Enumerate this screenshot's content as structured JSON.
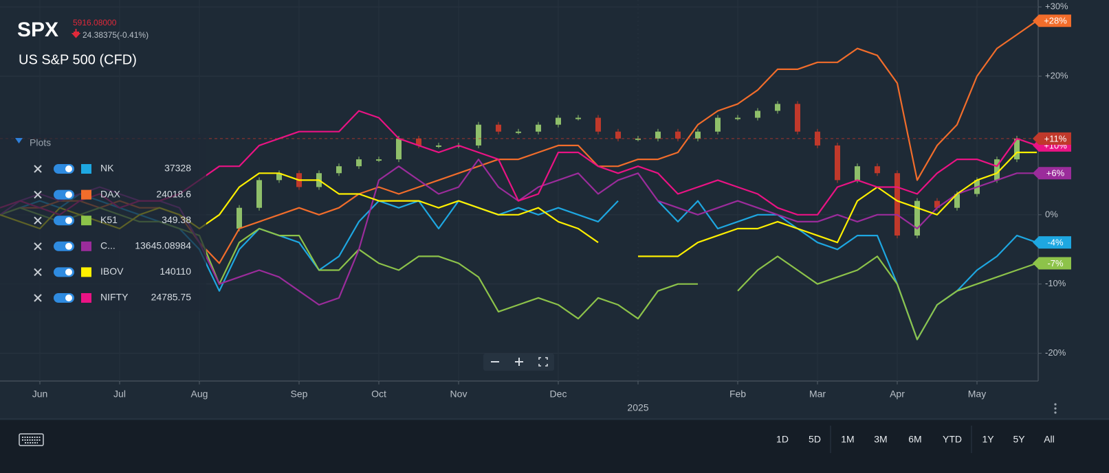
{
  "header": {
    "symbol": "SPX",
    "price": "5916.08000",
    "change": "24.38375(-0.41%)",
    "name": "US S&P 500 (CFD)"
  },
  "legend": {
    "title": "Plots"
  },
  "toolbar": [
    "1D",
    "5D",
    "1M",
    "3M",
    "6M",
    "YTD",
    "1Y",
    "5Y",
    "All"
  ],
  "chart_data": {
    "type": "line",
    "categories": [
      null,
      null,
      "Jun",
      null,
      null,
      null,
      "Jul",
      null,
      null,
      null,
      "Aug",
      null,
      null,
      null,
      null,
      "Sep",
      null,
      null,
      null,
      "Oct",
      null,
      null,
      null,
      "Nov",
      null,
      null,
      null,
      null,
      "Dec",
      null,
      null,
      null,
      "2025",
      null,
      null,
      null,
      null,
      "Feb",
      null,
      null,
      null,
      "Mar",
      null,
      null,
      null,
      "Apr",
      null,
      null,
      null,
      "May",
      null,
      null,
      null
    ],
    "ylim": [
      -24,
      31
    ],
    "yticks": [
      {
        "value": 30,
        "label": "+30%"
      },
      {
        "value": 20,
        "label": "+20%"
      },
      {
        "value": 0,
        "label": "0%"
      },
      {
        "value": -10,
        "label": "-10%"
      },
      {
        "value": -20,
        "label": "-20%"
      }
    ],
    "grid": true,
    "candles": {
      "up_color": "#8fbf6a",
      "down_color": "#c0392b",
      "end_label": "+11%",
      "values": [
        null,
        null,
        null,
        null,
        null,
        null,
        null,
        null,
        null,
        null,
        null,
        -2,
        1,
        5,
        6,
        4,
        6,
        7,
        8,
        8,
        11,
        10,
        10,
        10,
        13,
        12,
        12,
        13,
        14,
        14,
        12,
        11,
        11,
        12,
        11,
        12,
        14,
        14,
        15,
        16,
        12,
        10,
        5,
        7,
        6,
        -3,
        2,
        1,
        3,
        5,
        8,
        11,
        11
      ]
    },
    "series": [
      {
        "name": "NK",
        "legend_value": "37328",
        "color": "#1ea7e1",
        "end_label": "-4%",
        "values": [
          0,
          1,
          2,
          1,
          3,
          2,
          1,
          0,
          -1,
          -2,
          -5,
          -11,
          -5,
          -2,
          -3,
          -4,
          -8,
          -6,
          -1,
          2,
          1,
          2,
          -2,
          2,
          1,
          0,
          1,
          0,
          1,
          0,
          -1,
          2,
          null,
          2,
          -1,
          2,
          -2,
          -1,
          0,
          0,
          -2,
          -4,
          -5,
          -3,
          -3,
          -10,
          -18,
          -13,
          -11,
          -8,
          -6,
          -3,
          -4
        ]
      },
      {
        "name": "DAX",
        "legend_value": "24018.6",
        "color": "#f26d2b",
        "end_label": "+28%",
        "values": [
          0,
          1,
          1,
          2,
          2,
          1,
          2,
          1,
          1,
          0,
          -4,
          -7,
          -2,
          -1,
          0,
          1,
          0,
          1,
          3,
          4,
          3,
          4,
          5,
          6,
          7,
          8,
          8,
          9,
          10,
          10,
          7,
          7,
          8,
          8,
          9,
          13,
          15,
          16,
          18,
          21,
          21,
          22,
          22,
          24,
          23,
          19,
          5,
          10,
          13,
          20,
          24,
          26,
          28
        ]
      },
      {
        "name": "K51",
        "legend_value": "349.38",
        "color": "#8dc34a",
        "end_label": "-7%",
        "values": [
          0,
          1,
          0,
          -1,
          0,
          1,
          0,
          -1,
          -1,
          -2,
          -3,
          -10,
          -4,
          -2,
          -3,
          -3,
          -8,
          -8,
          -5,
          -7,
          -8,
          -6,
          -6,
          -7,
          -9,
          -14,
          -13,
          -12,
          -13,
          -15,
          -12,
          -13,
          -15,
          -11,
          -10,
          -10,
          null,
          -11,
          -8,
          -6,
          -8,
          -10,
          -9,
          -8,
          -6,
          -10,
          -18,
          -13,
          -11,
          -10,
          -9,
          -8,
          -7
        ]
      },
      {
        "name": "C...",
        "legend_value": "13645.08984",
        "color": "#9b2c9b",
        "end_label": "+6%",
        "values": [
          0,
          2,
          3,
          2,
          3,
          4,
          3,
          2,
          2,
          1,
          -4,
          -10,
          -9,
          -8,
          -9,
          -11,
          -13,
          -12,
          -5,
          5,
          7,
          5,
          3,
          4,
          8,
          4,
          2,
          4,
          5,
          6,
          3,
          5,
          6,
          2,
          1,
          0,
          1,
          2,
          1,
          0,
          -1,
          -1,
          0,
          -1,
          0,
          0,
          -2,
          1,
          3,
          4,
          5,
          6,
          6
        ]
      },
      {
        "name": "IBOV",
        "legend_value": "140110",
        "color": "#fff000",
        "values": [
          0,
          -1,
          -2,
          1,
          0,
          -1,
          -2,
          0,
          1,
          0,
          -2,
          0,
          4,
          6,
          6,
          5,
          5,
          3,
          3,
          2,
          2,
          2,
          1,
          2,
          1,
          0,
          0,
          1,
          -1,
          -2,
          -4,
          null,
          -6,
          -6,
          -6,
          -4,
          -3,
          -2,
          -2,
          -1,
          -2,
          -3,
          -4,
          2,
          4,
          2,
          1,
          0,
          3,
          5,
          6,
          9,
          9
        ]
      },
      {
        "name": "NIFTY",
        "legend_value": "24785.75",
        "color": "#ea1384",
        "end_label": "+10%",
        "values": [
          1,
          2,
          1,
          0,
          2,
          3,
          1,
          2,
          2,
          3,
          5,
          7,
          7,
          10,
          11,
          12,
          12,
          12,
          15,
          14,
          11,
          10,
          9,
          10,
          9,
          8,
          2,
          3,
          9,
          9,
          7,
          6,
          7,
          6,
          3,
          4,
          5,
          4,
          3,
          1,
          0,
          0,
          4,
          5,
          4,
          4,
          3,
          6,
          8,
          8,
          7,
          11,
          10
        ]
      }
    ]
  }
}
